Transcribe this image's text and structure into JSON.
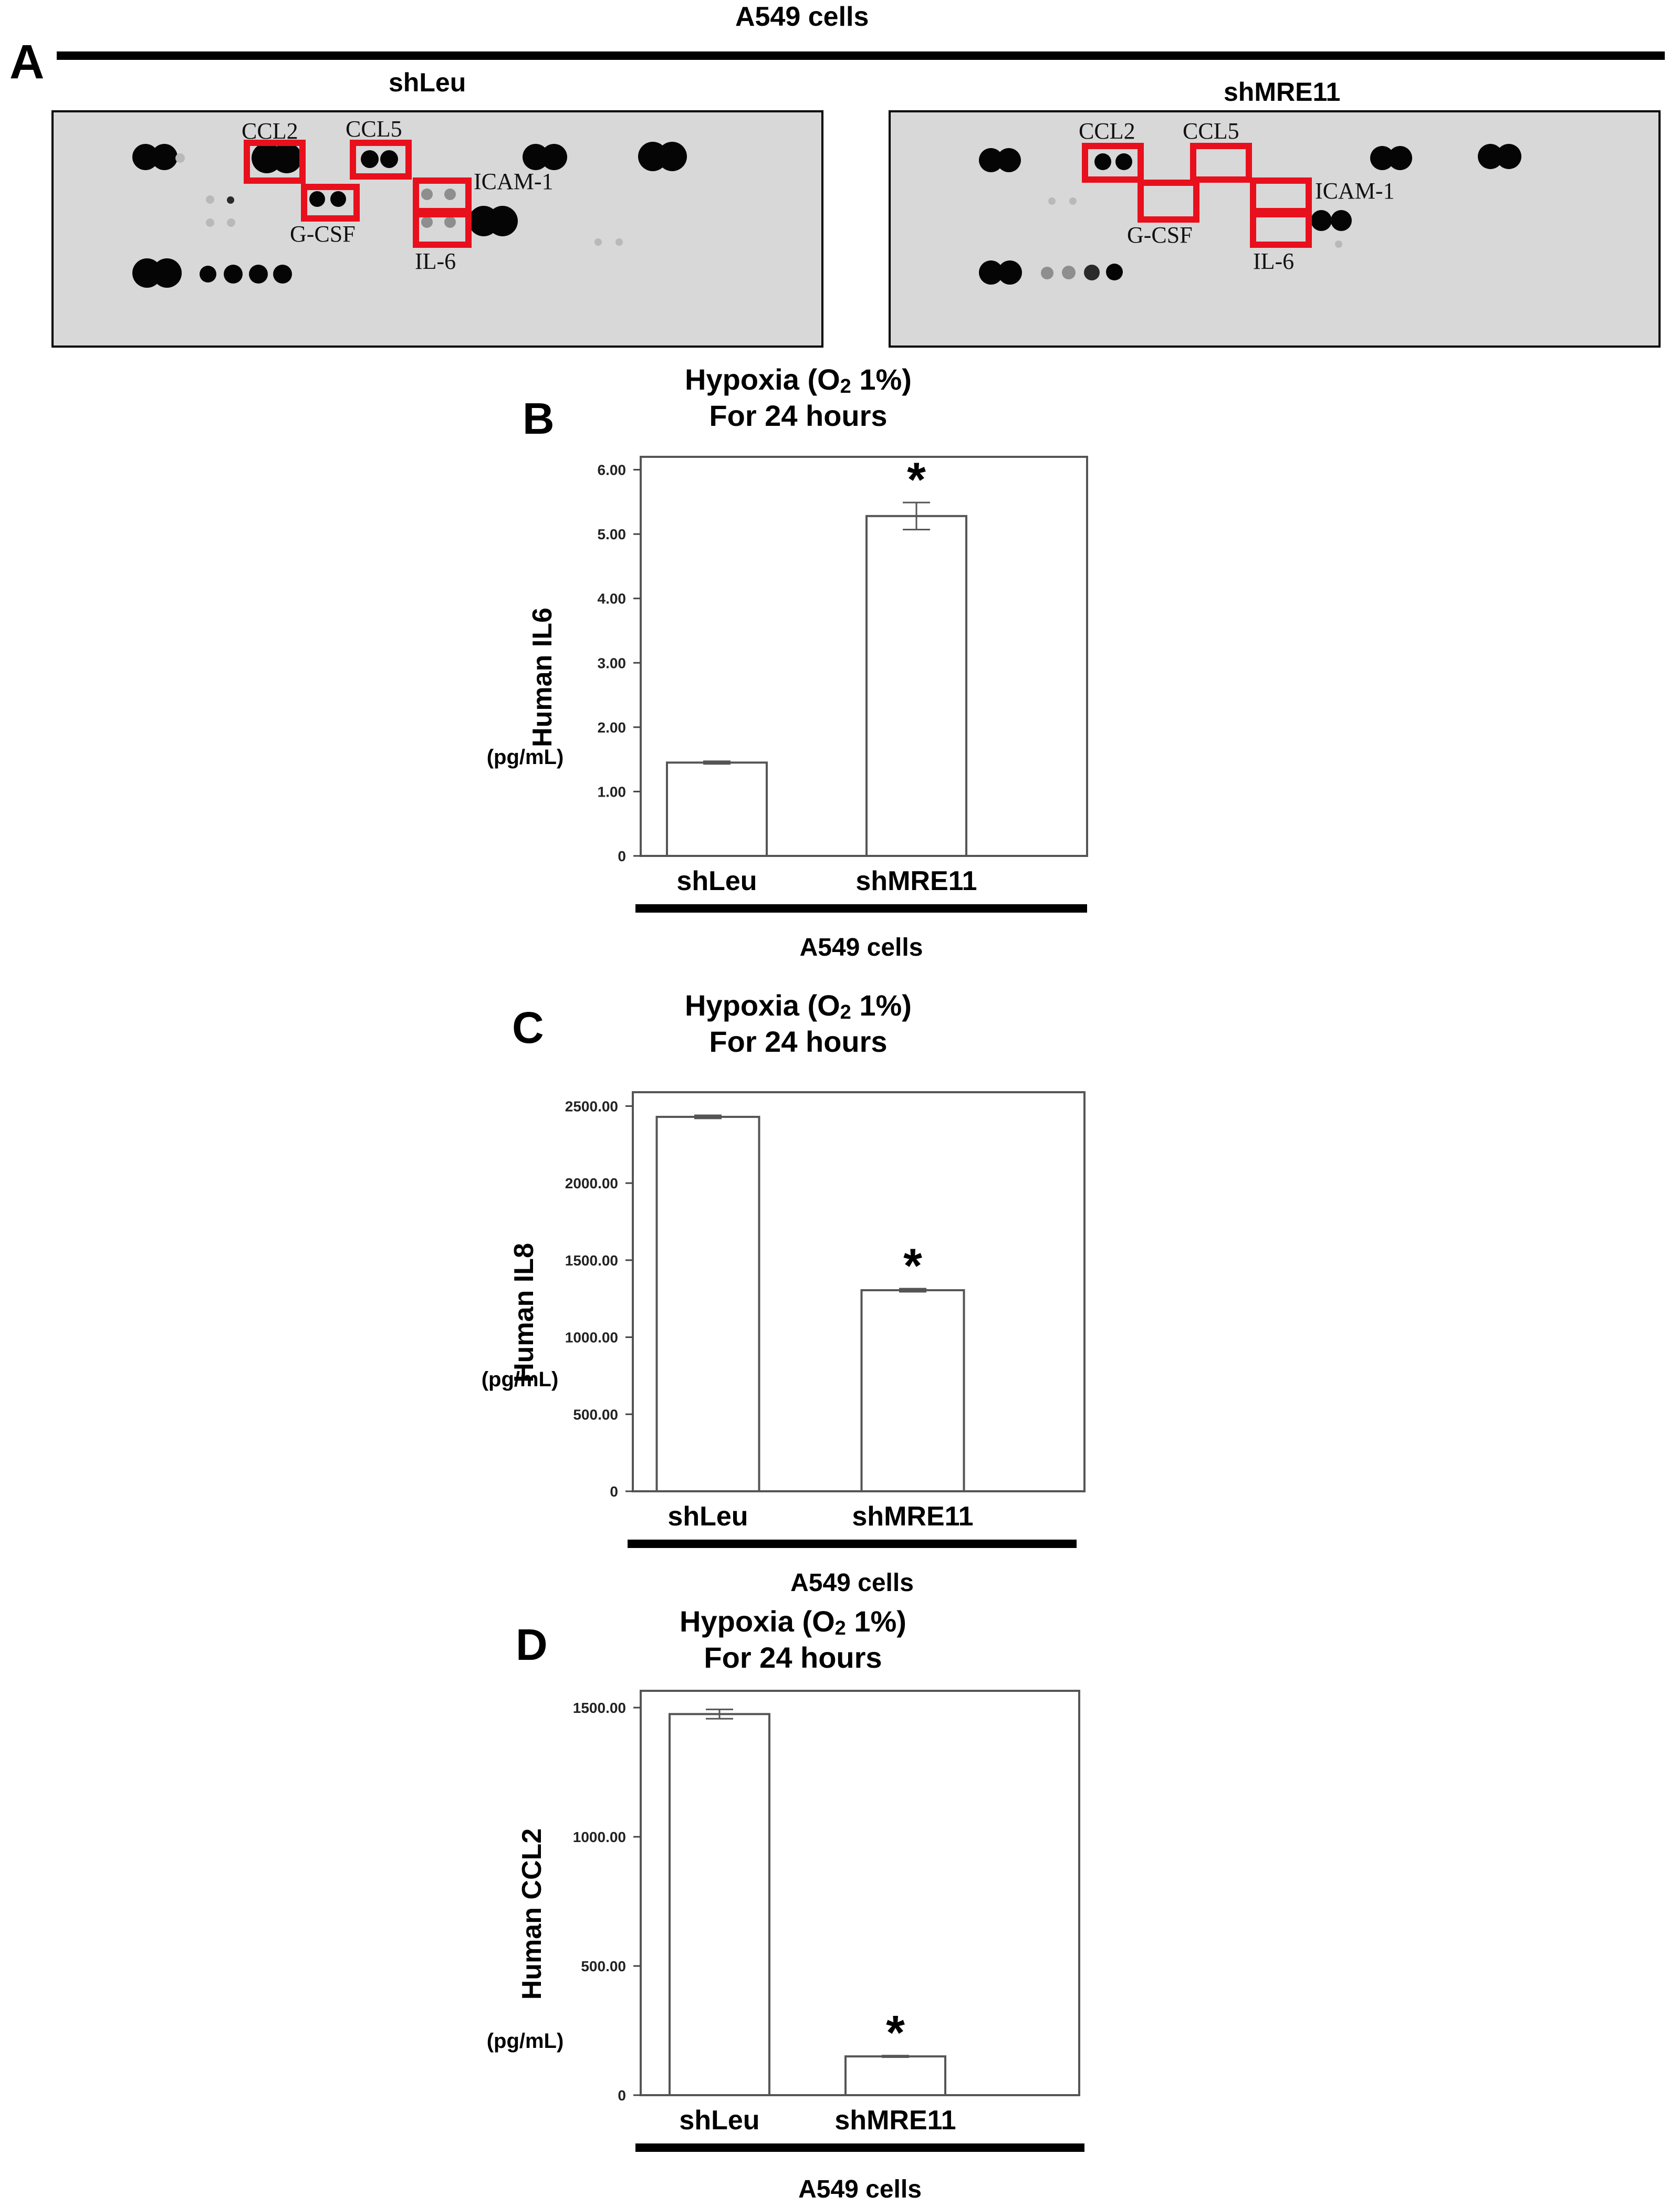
{
  "figure": {
    "panel_a": {
      "letter": "A",
      "title": "A549 cells",
      "blots": [
        {
          "condition": "shLeu",
          "labels": {
            "ccl2": "CCL2",
            "ccl5": "CCL5",
            "gcsf": "G-CSF",
            "icam1": "ICAM-1",
            "il6": "IL-6"
          }
        },
        {
          "condition": "shMRE11",
          "labels": {
            "ccl2": "CCL2",
            "ccl5": "CCL5",
            "gcsf": "G-CSF",
            "icam1": "ICAM-1",
            "il6": "IL-6"
          }
        }
      ],
      "highlight_color": "#e8101c"
    }
  },
  "chart_data": [
    {
      "panel": "B",
      "type": "bar",
      "title_line1_pre": "Hypoxia (O",
      "title_sub": "2",
      "title_line1_post": " 1%)",
      "title_line2": "For 24 hours",
      "ylabel": "Human IL6",
      "yunit": "(pg/mL)",
      "xgroup_label": "A549 cells",
      "categories": [
        "shLeu",
        "shMRE11"
      ],
      "values": [
        1.45,
        5.28
      ],
      "errors": [
        0.02,
        0.21
      ],
      "significance": [
        "",
        "*"
      ],
      "ylim": [
        0,
        6.2
      ],
      "yticks": [
        0,
        1.0,
        2.0,
        3.0,
        4.0,
        5.0,
        6.0
      ],
      "yticklabels": [
        "0",
        "1.00",
        "2.00",
        "3.00",
        "4.00",
        "5.00",
        "6.00"
      ]
    },
    {
      "panel": "C",
      "type": "bar",
      "title_line1_pre": "Hypoxia (O",
      "title_sub": "2",
      "title_line1_post": " 1%)",
      "title_line2": "For 24 hours",
      "ylabel": "Human IL8",
      "yunit": "(pg/mL)",
      "xgroup_label": "A549 cells",
      "categories": [
        "shLeu",
        "shMRE11"
      ],
      "values": [
        2430,
        1305
      ],
      "errors": [
        10,
        10
      ],
      "significance": [
        "",
        "*"
      ],
      "ylim": [
        0,
        2590
      ],
      "yticks": [
        0,
        500,
        1000,
        1500,
        2000,
        2500
      ],
      "yticklabels": [
        "0",
        "500.00",
        "1000.00",
        "1500.00",
        "2000.00",
        "2500.00"
      ]
    },
    {
      "panel": "D",
      "type": "bar",
      "title_line1_pre": "Hypoxia (O",
      "title_sub": "2",
      "title_line1_post": " 1%)",
      "title_line2": "For 24 hours",
      "ylabel": "Human CCL2",
      "yunit": "(pg/mL)",
      "xgroup_label": "A549 cells",
      "categories": [
        "shLeu",
        "shMRE11"
      ],
      "values": [
        1475,
        150
      ],
      "errors": [
        18,
        3
      ],
      "significance": [
        "",
        "*"
      ],
      "ylim": [
        0,
        1565
      ],
      "yticks": [
        0,
        500,
        1000,
        1500
      ],
      "yticklabels": [
        "0",
        "500.00",
        "1000.00",
        "1500.00"
      ]
    }
  ]
}
